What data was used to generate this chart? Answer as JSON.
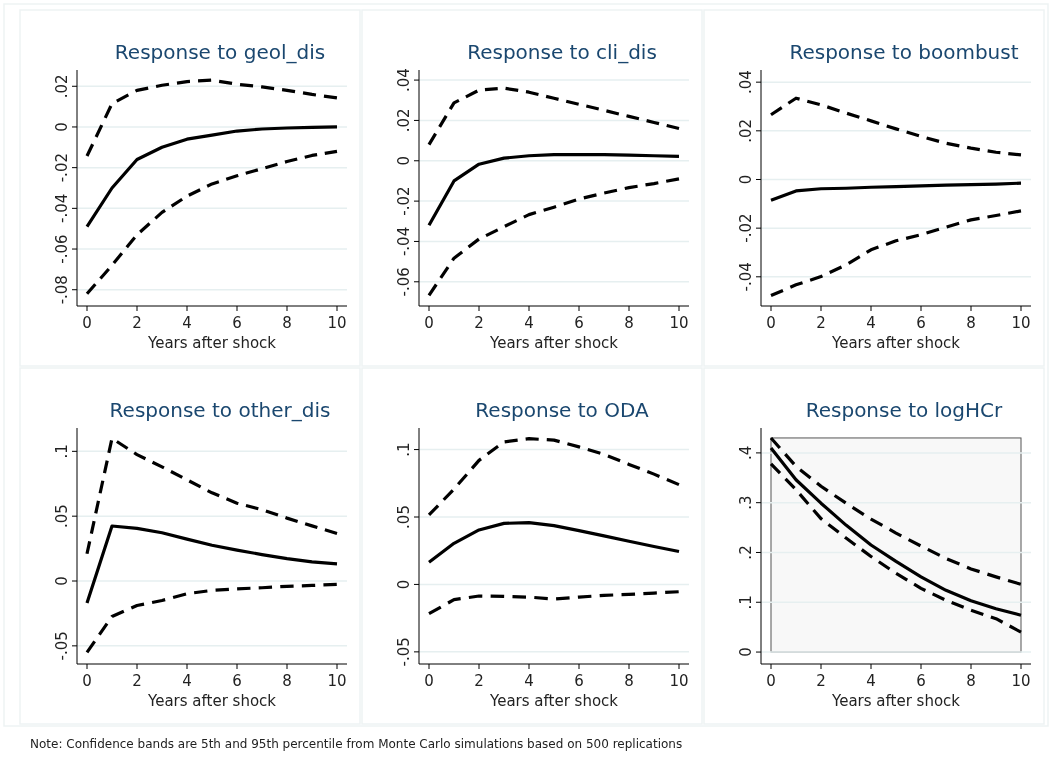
{
  "chart_data": [
    {
      "type": "line",
      "title": "Response to geol_dis",
      "xlabel": "Years after shock",
      "x": [
        0,
        1,
        2,
        3,
        4,
        5,
        6,
        7,
        8,
        9,
        10
      ],
      "xlim": [
        -0.4,
        10.4
      ],
      "xticks": [
        0,
        2,
        4,
        6,
        8,
        10
      ],
      "ylim": [
        -0.088,
        0.028
      ],
      "yticks": [
        {
          "value": -0.08,
          "label": "-.08"
        },
        {
          "value": -0.06,
          "label": "-.06"
        },
        {
          "value": -0.04,
          "label": "-.04"
        },
        {
          "value": -0.02,
          "label": "-.02"
        },
        {
          "value": 0,
          "label": "0"
        },
        {
          "value": 0.02,
          "label": ".02"
        }
      ],
      "grid": "y",
      "annotations": [
        "Note: Confidence bands are 5th and 95th percentile from Monte Carlo simulations based on 500 replications"
      ],
      "series": [
        {
          "color": "#000000",
          "line_style": "dashed",
          "values": [
            -0.0143,
            0.0115,
            0.018,
            0.0205,
            0.0223,
            0.023,
            0.021,
            0.0197,
            0.018,
            0.016,
            0.0143
          ]
        },
        {
          "color": "#000000",
          "line_style": "solid",
          "values": [
            -0.049,
            -0.03,
            -0.016,
            -0.01,
            -0.006,
            -0.004,
            -0.002,
            -0.001,
            -0.0005,
            -0.0002,
            0
          ]
        },
        {
          "color": "#000000",
          "line_style": "dashed",
          "values": [
            -0.082,
            -0.068,
            -0.053,
            -0.042,
            -0.034,
            -0.028,
            -0.024,
            -0.0205,
            -0.017,
            -0.014,
            -0.012
          ]
        }
      ]
    },
    {
      "type": "line",
      "title": "Response to cli_dis",
      "xlabel": "Years after shock",
      "x": [
        0,
        1,
        2,
        3,
        4,
        5,
        6,
        7,
        8,
        9,
        10
      ],
      "xlim": [
        -0.4,
        10.4
      ],
      "xticks": [
        0,
        2,
        4,
        6,
        8,
        10
      ],
      "ylim": [
        -0.072,
        0.045
      ],
      "yticks": [
        {
          "value": -0.06,
          "label": "-.06"
        },
        {
          "value": -0.04,
          "label": "-.04"
        },
        {
          "value": -0.02,
          "label": "-.02"
        },
        {
          "value": 0,
          "label": "0"
        },
        {
          "value": 0.02,
          "label": ".02"
        },
        {
          "value": 0.04,
          "label": ".04"
        }
      ],
      "grid": "y",
      "series": [
        {
          "color": "#000000",
          "line_style": "dashed",
          "values": [
            0.008,
            0.0287,
            0.035,
            0.036,
            0.034,
            0.031,
            0.028,
            0.025,
            0.022,
            0.019,
            0.016
          ]
        },
        {
          "color": "#000000",
          "line_style": "solid",
          "values": [
            -0.032,
            -0.01,
            -0.0017,
            0.0013,
            0.0025,
            0.003,
            0.003,
            0.003,
            0.0028,
            0.0025,
            0.0022
          ]
        },
        {
          "color": "#000000",
          "line_style": "dashed",
          "values": [
            -0.0667,
            -0.0483,
            -0.0388,
            -0.0327,
            -0.0267,
            -0.023,
            -0.019,
            -0.016,
            -0.0133,
            -0.0113,
            -0.009
          ]
        }
      ]
    },
    {
      "type": "line",
      "title": "Response to boombust",
      "xlabel": "Years after shock",
      "x": [
        0,
        1,
        2,
        3,
        4,
        5,
        6,
        7,
        8,
        9,
        10
      ],
      "xlim": [
        -0.4,
        10.4
      ],
      "xticks": [
        0,
        2,
        4,
        6,
        8,
        10
      ],
      "ylim": [
        -0.052,
        0.045
      ],
      "yticks": [
        {
          "value": -0.04,
          "label": "-.04"
        },
        {
          "value": -0.02,
          "label": "-.02"
        },
        {
          "value": 0,
          "label": "0"
        },
        {
          "value": 0.02,
          "label": ".02"
        },
        {
          "value": 0.04,
          "label": ".04"
        }
      ],
      "grid": "y",
      "series": [
        {
          "color": "#000000",
          "line_style": "dashed",
          "values": [
            0.0266,
            0.0334,
            0.0307,
            0.0273,
            0.0241,
            0.0208,
            0.0177,
            0.0149,
            0.0129,
            0.0112,
            0.0101
          ]
        },
        {
          "color": "#000000",
          "line_style": "solid",
          "values": [
            -0.0085,
            -0.0047,
            -0.0038,
            -0.0036,
            -0.0032,
            -0.0029,
            -0.0026,
            -0.0023,
            -0.0021,
            -0.0019,
            -0.0015
          ]
        },
        {
          "color": "#000000",
          "line_style": "dashed",
          "values": [
            -0.0477,
            -0.0433,
            -0.0399,
            -0.0351,
            -0.0289,
            -0.0252,
            -0.0227,
            -0.0196,
            -0.0166,
            -0.0148,
            -0.0129
          ]
        }
      ]
    },
    {
      "type": "line",
      "title": "Response to other_dis",
      "xlabel": "Years after shock",
      "x": [
        0,
        1,
        2,
        3,
        4,
        5,
        6,
        7,
        8,
        9,
        10
      ],
      "xlim": [
        -0.4,
        10.4
      ],
      "xticks": [
        0,
        2,
        4,
        6,
        8,
        10
      ],
      "ylim": [
        -0.064,
        0.118
      ],
      "yticks": [
        {
          "value": -0.05,
          "label": "-.05"
        },
        {
          "value": 0,
          "label": "0"
        },
        {
          "value": 0.05,
          "label": ".05"
        },
        {
          "value": 0.1,
          "label": ".1"
        }
      ],
      "grid": "y",
      "series": [
        {
          "color": "#000000",
          "line_style": "dashed",
          "values": [
            0.021,
            0.11,
            0.0975,
            0.088,
            0.078,
            0.068,
            0.06,
            0.055,
            0.0485,
            0.0425,
            0.0367
          ]
        },
        {
          "color": "#000000",
          "line_style": "solid",
          "values": [
            -0.017,
            0.0424,
            0.0406,
            0.0372,
            0.0323,
            0.0276,
            0.0238,
            0.0204,
            0.0173,
            0.0147,
            0.0132
          ]
        },
        {
          "color": "#000000",
          "line_style": "dashed",
          "values": [
            -0.055,
            -0.0274,
            -0.0189,
            -0.015,
            -0.0098,
            -0.0072,
            -0.006,
            -0.0052,
            -0.0041,
            -0.0034,
            -0.0026
          ]
        }
      ]
    },
    {
      "type": "line",
      "title": "Response to ODA",
      "xlabel": "Years after shock",
      "x": [
        0,
        1,
        2,
        3,
        4,
        5,
        6,
        7,
        8,
        9,
        10
      ],
      "xlim": [
        -0.4,
        10.4
      ],
      "xticks": [
        0,
        2,
        4,
        6,
        8,
        10
      ],
      "ylim": [
        -0.059,
        0.116
      ],
      "yticks": [
        {
          "value": -0.05,
          "label": "-.05"
        },
        {
          "value": 0,
          "label": "0"
        },
        {
          "value": 0.05,
          "label": ".05"
        },
        {
          "value": 0.1,
          "label": ".1"
        }
      ],
      "grid": "y",
      "series": [
        {
          "color": "#000000",
          "line_style": "dashed",
          "values": [
            0.0515,
            0.0707,
            0.092,
            0.1057,
            0.1081,
            0.107,
            0.102,
            0.0965,
            0.089,
            0.0818,
            0.074
          ]
        },
        {
          "color": "#000000",
          "line_style": "solid",
          "values": [
            0.0165,
            0.0305,
            0.0404,
            0.0453,
            0.0458,
            0.0436,
            0.0399,
            0.036,
            0.032,
            0.0281,
            0.0244
          ]
        },
        {
          "color": "#000000",
          "line_style": "dashed",
          "values": [
            -0.0217,
            -0.0113,
            -0.0086,
            -0.0089,
            -0.0094,
            -0.0108,
            -0.0094,
            -0.0081,
            -0.0074,
            -0.0064,
            -0.0054
          ]
        }
      ]
    },
    {
      "type": "line",
      "title": "Response to logHCr",
      "xlabel": "Years after shock",
      "x": [
        0,
        1,
        2,
        3,
        4,
        5,
        6,
        7,
        8,
        9,
        10
      ],
      "xlim": [
        -0.4,
        10.4
      ],
      "xticks": [
        0,
        2,
        4,
        6,
        8,
        10
      ],
      "ylim": [
        -0.024,
        0.45
      ],
      "yticks": [
        {
          "value": 0,
          "label": "0"
        },
        {
          "value": 0.1,
          "label": ".1"
        },
        {
          "value": 0.2,
          "label": ".2"
        },
        {
          "value": 0.3,
          "label": ".3"
        },
        {
          "value": 0.4,
          "label": ".4"
        }
      ],
      "grid": "y",
      "bands": [
        {
          "axis": "y",
          "from": 0,
          "to": 0.43,
          "color": "#f8f8f8"
        }
      ],
      "series": [
        {
          "color": "#000000",
          "line_style": "dashed",
          "values": [
            0.43,
            0.373,
            0.333,
            0.299,
            0.267,
            0.239,
            0.213,
            0.188,
            0.167,
            0.151,
            0.136
          ]
        },
        {
          "color": "#000000",
          "line_style": "solid",
          "values": [
            0.41,
            0.346,
            0.299,
            0.255,
            0.215,
            0.182,
            0.151,
            0.124,
            0.103,
            0.087,
            0.074
          ]
        },
        {
          "color": "#000000",
          "line_style": "dashed",
          "values": [
            0.378,
            0.326,
            0.268,
            0.229,
            0.192,
            0.158,
            0.128,
            0.104,
            0.084,
            0.067,
            0.04
          ]
        }
      ]
    }
  ]
}
